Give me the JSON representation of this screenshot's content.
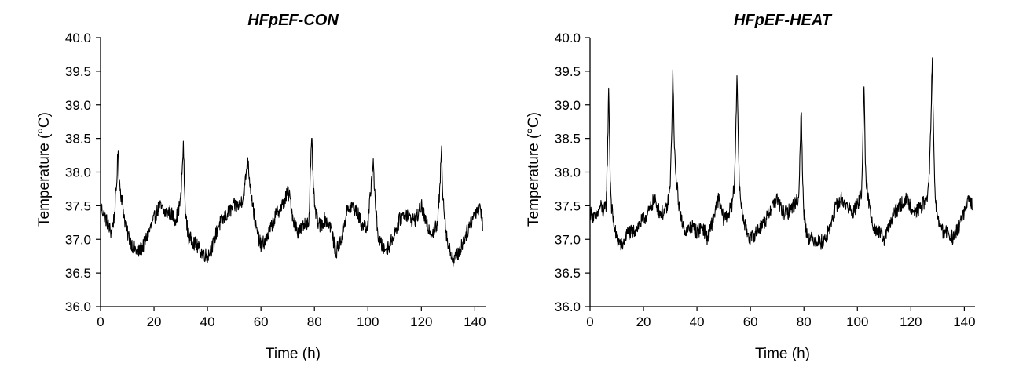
{
  "chart_data": [
    {
      "type": "line",
      "title": "HFpEF-CON",
      "xlabel": "Time (h)",
      "ylabel": "Temperature (°C)",
      "xlim": [
        0,
        144
      ],
      "ylim": [
        36.0,
        40.0
      ],
      "xticks": [
        0,
        20,
        40,
        60,
        80,
        100,
        120,
        140
      ],
      "yticks": [
        36.0,
        36.5,
        37.0,
        37.5,
        38.0,
        38.5,
        39.0,
        39.5,
        40.0
      ],
      "grid": false,
      "line_color": "#000000",
      "series": [
        {
          "x": [
            0,
            2,
            4,
            5,
            6,
            6.5,
            7,
            7.5,
            8,
            9,
            10,
            12,
            14,
            16,
            18,
            20,
            22,
            24,
            26,
            28,
            29,
            30,
            31,
            31.5,
            32,
            33,
            34,
            36,
            38,
            40,
            42,
            44,
            46,
            48,
            50,
            52,
            53,
            54,
            55,
            56,
            57,
            58,
            60,
            62,
            64,
            66,
            68,
            70,
            71,
            72,
            74,
            76,
            78,
            78.5,
            79,
            79.5,
            80,
            81,
            82,
            84,
            86,
            88,
            90,
            92,
            94,
            96,
            98,
            100,
            102,
            102.5,
            103,
            104,
            106,
            108,
            110,
            112,
            114,
            116,
            118,
            120,
            122,
            124,
            126,
            127,
            127.5,
            128,
            129,
            130,
            132,
            134,
            136,
            138,
            140,
            142,
            143
          ],
          "y": [
            37.5,
            37.3,
            37.1,
            37.3,
            37.8,
            38.3,
            37.9,
            37.7,
            37.6,
            37.3,
            37.1,
            36.9,
            36.8,
            36.9,
            37.1,
            37.3,
            37.5,
            37.4,
            37.4,
            37.3,
            37.4,
            37.6,
            38.4,
            37.6,
            37.3,
            37.0,
            37.0,
            36.9,
            36.8,
            36.75,
            36.9,
            37.2,
            37.3,
            37.4,
            37.5,
            37.5,
            37.6,
            37.8,
            38.2,
            37.8,
            37.5,
            37.2,
            36.9,
            37.0,
            37.2,
            37.4,
            37.5,
            37.7,
            37.6,
            37.3,
            37.1,
            37.2,
            37.3,
            38.0,
            38.5,
            37.9,
            37.5,
            37.3,
            37.2,
            37.3,
            37.2,
            36.8,
            37.0,
            37.4,
            37.5,
            37.4,
            37.2,
            37.2,
            38.2,
            37.7,
            37.4,
            37.0,
            36.85,
            36.9,
            37.1,
            37.3,
            37.4,
            37.3,
            37.3,
            37.5,
            37.2,
            37.1,
            37.2,
            37.8,
            38.4,
            37.7,
            37.2,
            36.9,
            36.7,
            36.8,
            37.0,
            37.2,
            37.4,
            37.5,
            37.2
          ]
        }
      ]
    },
    {
      "type": "line",
      "title": "HFpEF-HEAT",
      "xlabel": "Time (h)",
      "ylabel": "Temperature (°C)",
      "xlim": [
        0,
        144
      ],
      "ylim": [
        36.0,
        40.0
      ],
      "xticks": [
        0,
        20,
        40,
        60,
        80,
        100,
        120,
        140
      ],
      "yticks": [
        36.0,
        36.5,
        37.0,
        37.5,
        38.0,
        38.5,
        39.0,
        39.5,
        40.0
      ],
      "grid": false,
      "line_color": "#000000",
      "series": [
        {
          "x": [
            0,
            2,
            4,
            5,
            6,
            6.5,
            7,
            7.5,
            8,
            9,
            10,
            12,
            14,
            16,
            18,
            20,
            22,
            24,
            26,
            28,
            29,
            30,
            30.5,
            31,
            31.5,
            32,
            33,
            34,
            36,
            38,
            40,
            42,
            44,
            46,
            48,
            50,
            52,
            53,
            54,
            54.5,
            55,
            55.5,
            56,
            57,
            58,
            60,
            62,
            64,
            66,
            68,
            70,
            72,
            74,
            76,
            78,
            78.5,
            79,
            79.5,
            80,
            81,
            82,
            84,
            86,
            88,
            90,
            92,
            94,
            96,
            98,
            100,
            101.5,
            102,
            102.5,
            103,
            104,
            106,
            108,
            110,
            112,
            114,
            116,
            118,
            120,
            122,
            124,
            126,
            127,
            127.5,
            128,
            128.5,
            129,
            130,
            132,
            134,
            136,
            138,
            140,
            142,
            143
          ],
          "y": [
            37.4,
            37.3,
            37.5,
            37.4,
            37.5,
            38.2,
            39.3,
            38.0,
            37.5,
            37.2,
            37.0,
            36.9,
            37.1,
            37.1,
            37.2,
            37.3,
            37.4,
            37.6,
            37.4,
            37.4,
            37.5,
            37.8,
            38.5,
            39.5,
            38.4,
            38.0,
            37.6,
            37.3,
            37.1,
            37.2,
            37.1,
            37.2,
            37.0,
            37.3,
            37.6,
            37.3,
            37.4,
            37.5,
            37.8,
            38.6,
            39.55,
            38.3,
            37.7,
            37.4,
            37.2,
            37.0,
            37.1,
            37.2,
            37.3,
            37.5,
            37.6,
            37.4,
            37.4,
            37.5,
            37.6,
            38.2,
            39.0,
            37.9,
            37.4,
            37.1,
            37.0,
            37.0,
            36.95,
            37.0,
            37.2,
            37.5,
            37.6,
            37.5,
            37.4,
            37.5,
            37.7,
            38.4,
            39.35,
            38.0,
            37.6,
            37.2,
            37.1,
            37.0,
            37.2,
            37.4,
            37.5,
            37.6,
            37.5,
            37.4,
            37.5,
            37.6,
            38.0,
            38.8,
            39.7,
            38.5,
            37.7,
            37.3,
            37.1,
            37.1,
            37.0,
            37.2,
            37.4,
            37.6,
            37.5
          ]
        }
      ]
    }
  ]
}
